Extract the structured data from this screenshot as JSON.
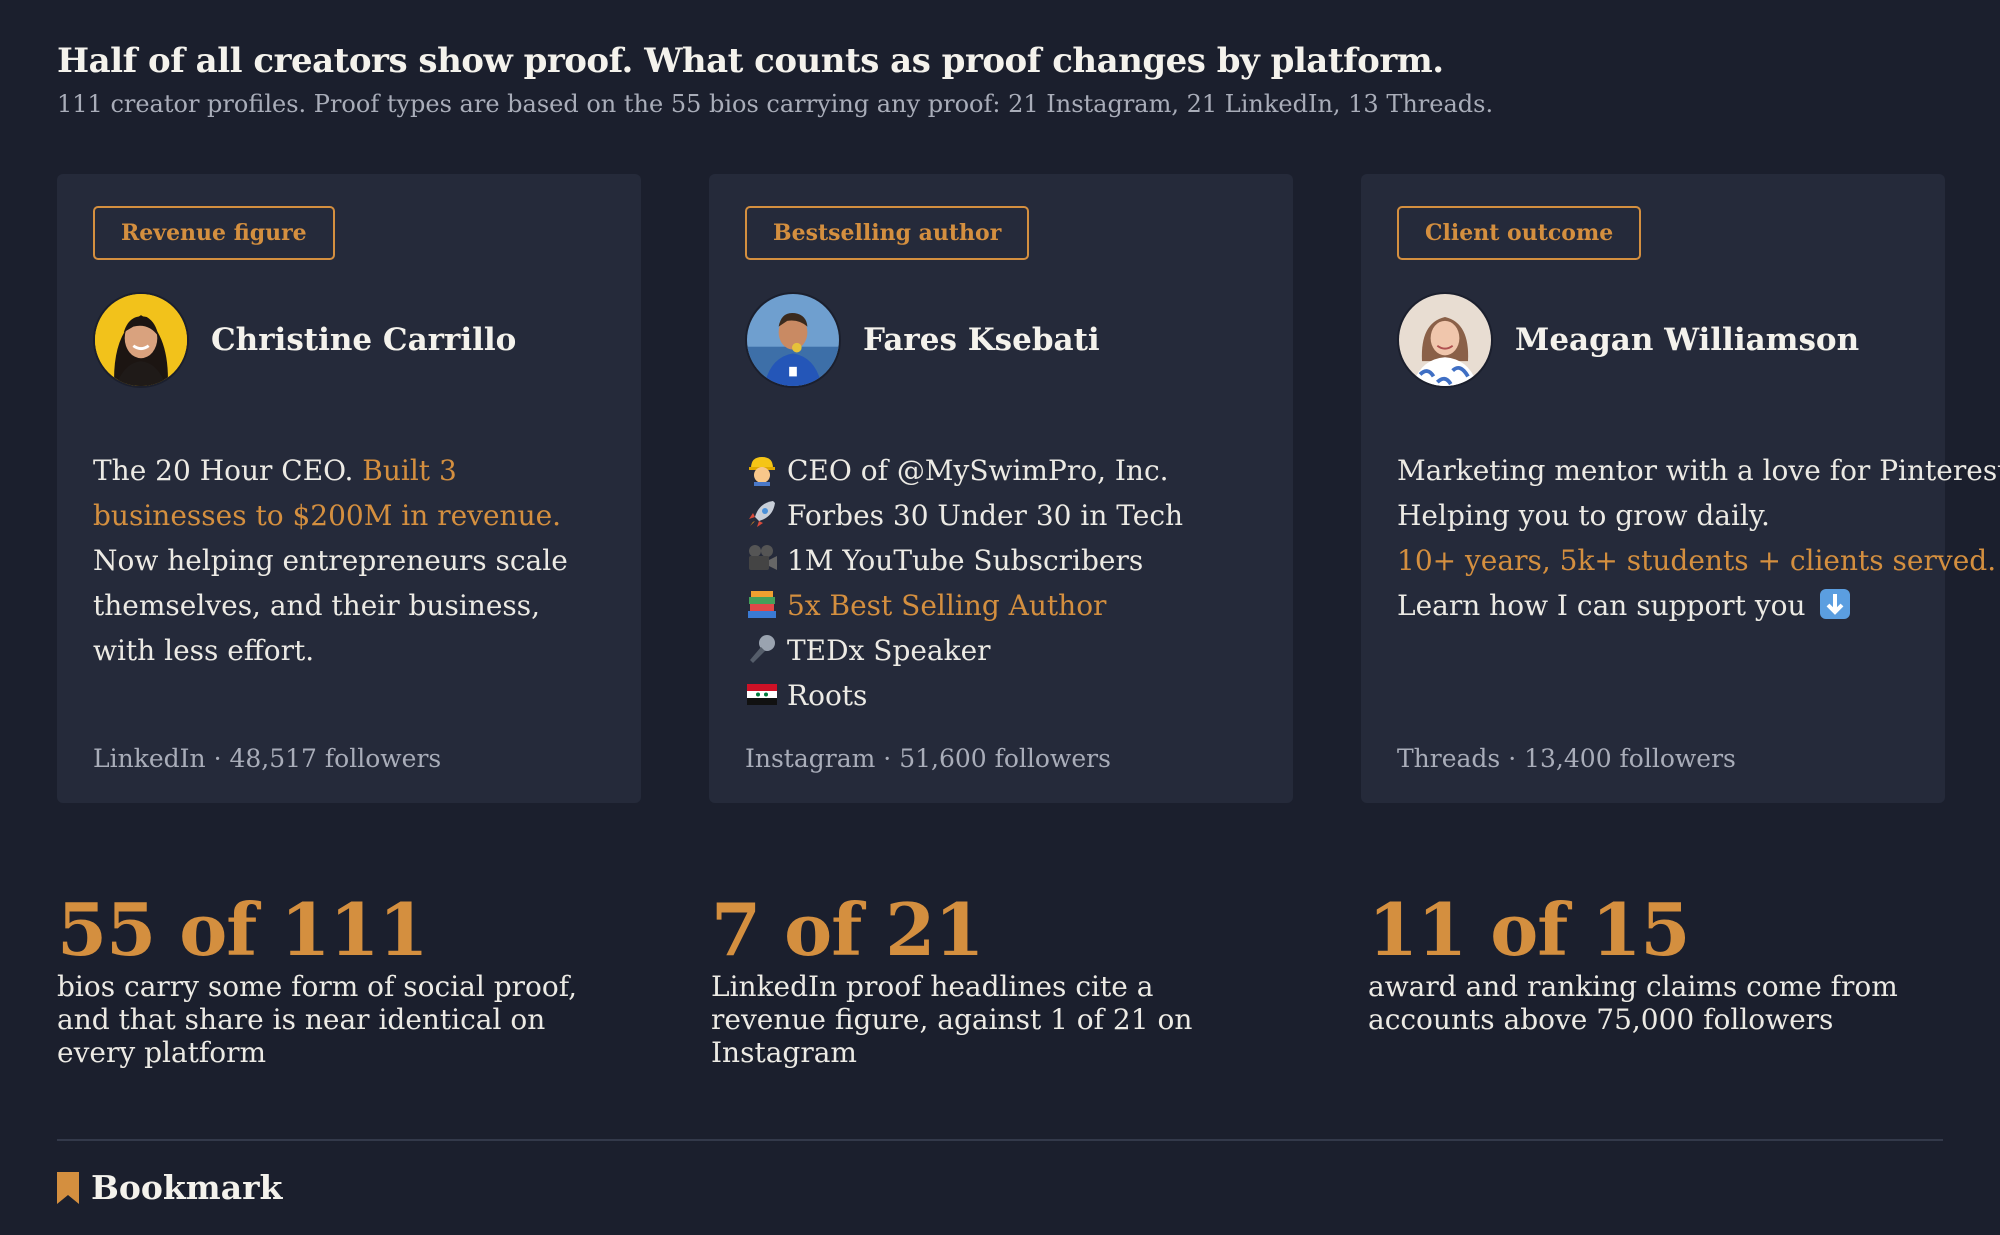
{
  "header": {
    "title": "Half of all creators show proof. What counts as proof changes by platform.",
    "subtitle": "111 creator profiles. Proof types are based on the 55 bios carrying any proof: 21 Instagram, 21 LinkedIn, 13 Threads."
  },
  "colors": {
    "background": "#1b1f2d",
    "card": "#252a3a",
    "accent": "#d48f3f",
    "muted_text": "#a9adb9"
  },
  "cards": [
    {
      "tag": "Revenue figure",
      "name": "Christine Carrillo",
      "bio": {
        "p1": "The 20 Hour CEO. ",
        "highlight": "Built 3 businesses to $200M in revenue.",
        "p2": " Now helping entrepreneurs scale themselves, and their business, with less effort."
      },
      "platform": "LinkedIn",
      "followers": "48,517 followers"
    },
    {
      "tag": "Bestselling author",
      "name": "Fares Ksebati",
      "bio_lines": [
        {
          "icon": "construction-worker-icon",
          "text": "CEO of @MySwimPro, Inc."
        },
        {
          "icon": "rocket-icon",
          "text": "Forbes 30 Under 30 in Tech"
        },
        {
          "icon": "movie-camera-icon",
          "text": "1M YouTube Subscribers"
        },
        {
          "icon": "books-icon",
          "text": "5x Best Selling Author"
        },
        {
          "icon": "microphone-icon",
          "text": "TEDx Speaker"
        },
        {
          "icon": "syria-flag-icon",
          "text": "Roots"
        }
      ],
      "platform": "Instagram",
      "followers": "51,600 followers"
    },
    {
      "tag": "Client outcome",
      "name": "Meagan Williamson",
      "bio_lines": [
        "Marketing mentor with a love for Pinterest.",
        "Helping you to grow daily.",
        "10+ years, 5k+ students + clients served.",
        "Learn how I can support you"
      ],
      "last_icon": "down-arrow-icon",
      "platform": "Threads",
      "followers": "13,400 followers"
    }
  ],
  "separator": "·",
  "stats": [
    {
      "number": "55 of 111",
      "text": "bios carry some form of social proof, and that share is near identical on every platform"
    },
    {
      "number": "7 of 21",
      "text": "LinkedIn proof headlines cite a revenue figure, against 1 of 21 on Instagram"
    },
    {
      "number": "11 of 15",
      "text": "award and ranking claims come from accounts above 75,000 followers"
    }
  ],
  "footer": {
    "brand": "Bookmark",
    "brand_icon": "bookmark-icon"
  }
}
